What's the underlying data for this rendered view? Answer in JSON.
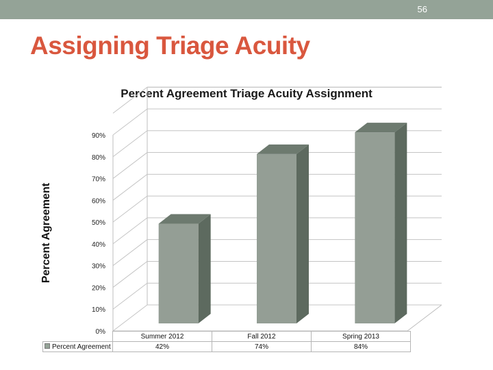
{
  "slide": {
    "number": "56",
    "title": "Assigning Triage Acuity"
  },
  "colors": {
    "topbar": "#94a397",
    "title": "#d9573e",
    "bar_front": "#949e95",
    "bar_top": "#6d7a6f",
    "bar_side": "#5d6a5f"
  },
  "chart_data": {
    "type": "bar",
    "title": "Percent Agreement Triage Acuity Assignment",
    "ylabel": "Percent Agreement",
    "xlabel": "",
    "categories": [
      "Summer 2012",
      "Fall 2012",
      "Spring 2013"
    ],
    "series": [
      {
        "name": "Percent Agreement",
        "values": [
          42,
          74,
          84
        ],
        "labels": [
          "42%",
          "74%",
          "84%"
        ]
      }
    ],
    "ylim": [
      0,
      90
    ],
    "ticks": [
      "0%",
      "10%",
      "20%",
      "30%",
      "40%",
      "50%",
      "60%",
      "70%",
      "80%",
      "90%"
    ],
    "grid": true,
    "legend": "data-table"
  }
}
